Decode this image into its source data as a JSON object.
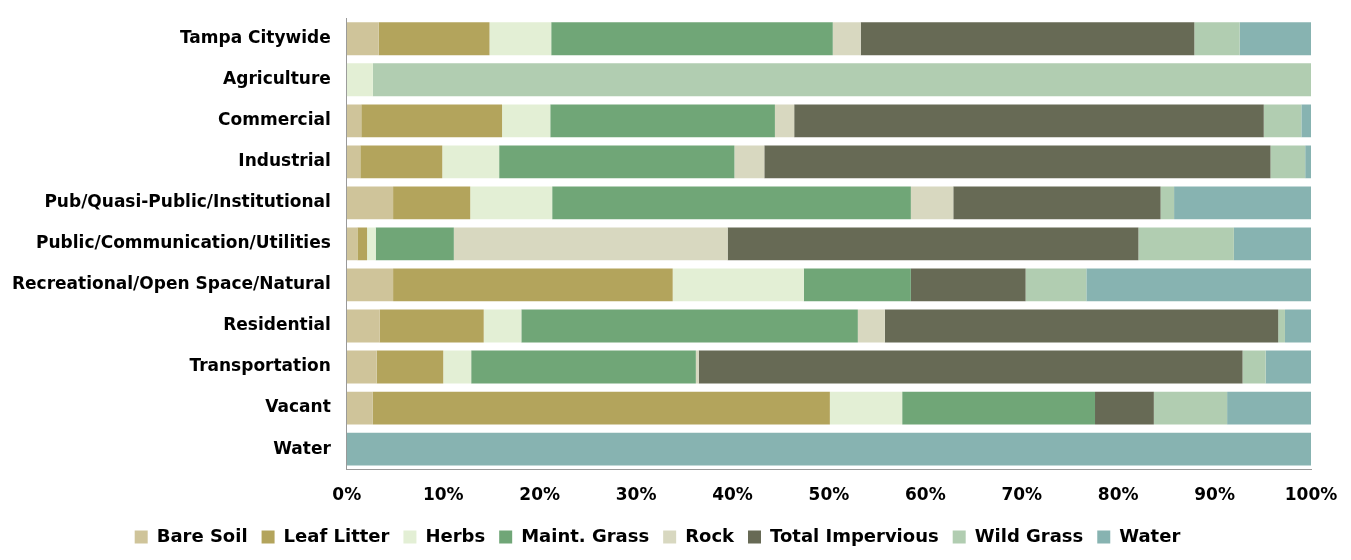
{
  "chart_data": {
    "type": "bar",
    "orientation": "horizontal",
    "stacked": true,
    "categories": [
      "Tampa Citywide",
      "Agriculture",
      "Commercial",
      "Industrial",
      "Pub/Quasi-Public/Institutional",
      "Public/Communication/Utilities",
      "Recreational/Open Space/Natural",
      "Residential",
      "Transportation",
      "Vacant",
      "Water"
    ],
    "series": [
      {
        "name": "Bare Soil",
        "color": "#cfc49a",
        "values": [
          3.3,
          0,
          1.5,
          1.4,
          4.8,
          1.1,
          4.8,
          3.4,
          3.1,
          2.7,
          0
        ]
      },
      {
        "name": "Leaf Litter",
        "color": "#b3a45c",
        "values": [
          11.5,
          0,
          14.6,
          8.5,
          8.0,
          1.0,
          29.0,
          10.8,
          6.9,
          47.4,
          0
        ]
      },
      {
        "name": "Herbs",
        "color": "#e3efd5",
        "values": [
          6.4,
          2.7,
          5.0,
          5.9,
          8.5,
          0.9,
          13.6,
          3.9,
          2.9,
          7.5,
          0
        ]
      },
      {
        "name": "Maint. Grass",
        "color": "#70a677",
        "values": [
          29.2,
          0,
          23.3,
          24.4,
          37.2,
          8.1,
          11.1,
          34.9,
          23.3,
          20.0,
          0
        ]
      },
      {
        "name": "Rock",
        "color": "#d8d8c0",
        "values": [
          2.9,
          0,
          2.0,
          3.1,
          4.4,
          28.4,
          null,
          2.8,
          0.3,
          0,
          0
        ]
      },
      {
        "name": "Total Impervious",
        "color": "#676a55",
        "values": [
          34.6,
          0,
          48.7,
          52.5,
          21.5,
          42.6,
          11.9,
          40.8,
          56.4,
          6.1,
          0
        ]
      },
      {
        "name": "Wild Grass",
        "color": "#b1cdb1",
        "values": [
          4.7,
          97.3,
          3.9,
          3.6,
          1.4,
          9.9,
          6.3,
          0.7,
          2.4,
          7.6,
          0
        ]
      },
      {
        "name": "Water",
        "color": "#87b3b1",
        "values": [
          7.4,
          0,
          1.0,
          0.6,
          14.2,
          8.0,
          23.3,
          2.7,
          4.8,
          8.8,
          100
        ]
      }
    ],
    "xlim": [
      0,
      100
    ],
    "xticks": [
      {
        "value": 0,
        "label": "0%"
      },
      {
        "value": 10,
        "label": "10%"
      },
      {
        "value": 20,
        "label": "20%"
      },
      {
        "value": 30,
        "label": "30%"
      },
      {
        "value": 40,
        "label": "40%"
      },
      {
        "value": 50,
        "label": "50%"
      },
      {
        "value": 60,
        "label": "60%"
      },
      {
        "value": 70,
        "label": "70%"
      },
      {
        "value": 80,
        "label": "80%"
      },
      {
        "value": 90,
        "label": "90%"
      },
      {
        "value": 100,
        "label": "100%"
      }
    ],
    "grid": false,
    "legend": "bottom"
  }
}
